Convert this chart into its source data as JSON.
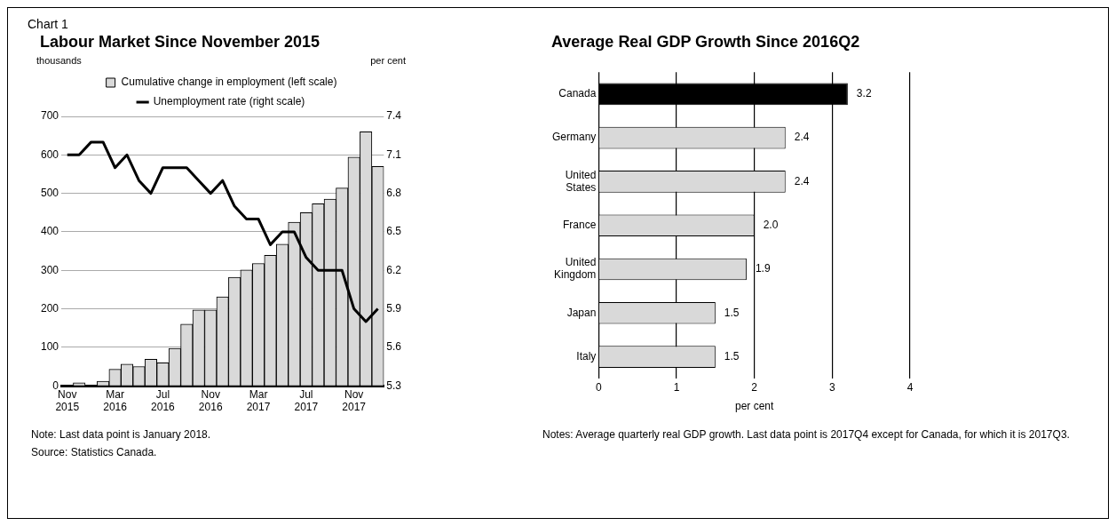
{
  "chart_data": [
    {
      "type": "bar",
      "title": "Labour Market Since November 2015",
      "ylabel": "thousands",
      "y2label": "per cent",
      "categories": [
        "Nov\n2015",
        null,
        null,
        null,
        "Mar\n2016",
        null,
        null,
        null,
        "Jul\n2016",
        null,
        null,
        null,
        "Nov\n2016",
        null,
        null,
        null,
        "Mar\n2017",
        null,
        null,
        null,
        "Jul\n2017",
        null,
        null,
        null,
        "Nov\n2017",
        null,
        null
      ],
      "series": [
        {
          "name": "Cumulative change in employment (left scale)",
          "color": "#d9d9d9",
          "values": [
            0,
            8,
            0,
            12,
            43,
            56,
            50,
            69,
            60,
            97,
            160,
            197,
            197,
            231,
            282,
            301,
            318,
            339,
            368,
            425,
            450,
            473,
            485,
            514,
            594,
            660,
            570
          ]
        },
        {
          "name": "Unemployment rate (right scale)",
          "type": "line",
          "axis": "y2",
          "color": "#000000",
          "values": [
            7.1,
            7.1,
            7.2,
            7.2,
            7.0,
            7.1,
            6.9,
            6.8,
            7.0,
            7.0,
            7.0,
            6.9,
            6.8,
            6.9,
            6.7,
            6.6,
            6.6,
            6.4,
            6.5,
            6.5,
            6.3,
            6.2,
            6.2,
            6.2,
            5.9,
            5.8,
            5.9
          ]
        }
      ],
      "ylim": [
        0,
        700
      ],
      "yticks": [
        0,
        100,
        200,
        300,
        400,
        500,
        600,
        700
      ],
      "y2lim": [
        5.3,
        7.4
      ],
      "y2ticks": [
        5.3,
        5.6,
        5.9,
        6.2,
        6.5,
        6.8,
        7.1,
        7.4
      ],
      "grid": "y",
      "legend": "top",
      "marker": "none",
      "annotations": [
        "Chart 1",
        "Note: Last data point is January 2018.",
        "Source: Statistics Canada."
      ]
    },
    {
      "type": "bar",
      "orientation": "horizontal",
      "title": "Average Real GDP Growth Since 2016Q2",
      "xlabel": "per cent",
      "categories": [
        "Canada",
        "Germany",
        "United\nStates",
        "France",
        "United\nKingdom",
        "Japan",
        "Italy"
      ],
      "values": [
        3.2,
        2.4,
        2.4,
        2.0,
        1.9,
        1.5,
        1.5
      ],
      "value_labels": [
        "3.2",
        "2.4",
        "2.4",
        "2.0",
        "1.9",
        "1.5",
        "1.5"
      ],
      "colors": [
        "#000000",
        "#d9d9d9",
        "#d9d9d9",
        "#d9d9d9",
        "#d9d9d9",
        "#d9d9d9",
        "#d9d9d9"
      ],
      "xlim": [
        0,
        4
      ],
      "xticks": [
        0,
        1,
        2,
        3,
        4
      ],
      "grid": "x",
      "annotations": [
        "Notes: Average quarterly real GDP growth. Last data point is 2017Q4 except for Canada, for which it is 2017Q3."
      ]
    }
  ]
}
